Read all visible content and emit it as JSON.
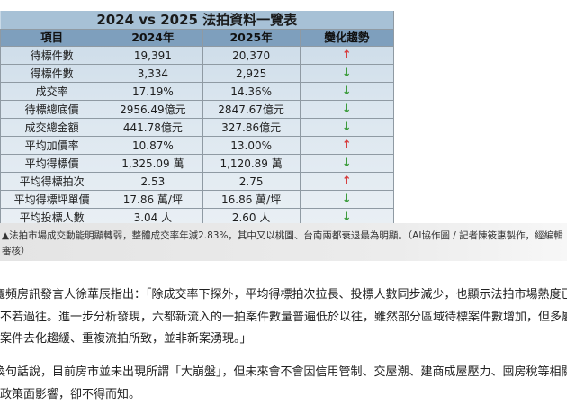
{
  "table": {
    "title": "2024 vs 2025 法拍資料一覽表",
    "headers": [
      "項目",
      "2024年",
      "2025年",
      "變化趨勢"
    ],
    "rows": [
      {
        "item": "待標件數",
        "y2024": "19,391",
        "y2025": "20,370",
        "trend": "↑",
        "trend_dir": "up"
      },
      {
        "item": "得標件數",
        "y2024": "3,334",
        "y2025": "2,925",
        "trend": "↓",
        "trend_dir": "down"
      },
      {
        "item": "成交率",
        "y2024": "17.19%",
        "y2025": "14.36%",
        "trend": "↓",
        "trend_dir": "down"
      },
      {
        "item": "待標總底價",
        "y2024": "2956.49億元",
        "y2025": "2847.67億元",
        "trend": "↓",
        "trend_dir": "down"
      },
      {
        "item": "成交總金額",
        "y2024": "441.78億元",
        "y2025": "327.86億元",
        "trend": "↓",
        "trend_dir": "down"
      },
      {
        "item": "平均加價率",
        "y2024": "10.87%",
        "y2025": "13.00%",
        "trend": "↑",
        "trend_dir": "up"
      },
      {
        "item": "平均得標價",
        "y2024": "1,325.09 萬",
        "y2025": "1,120.89 萬",
        "trend": "↓",
        "trend_dir": "down"
      },
      {
        "item": "平均得標拍次",
        "y2024": "2.53",
        "y2025": "2.75",
        "trend": "↑",
        "trend_dir": "up"
      },
      {
        "item": "平均得標坪單價",
        "y2024": "17.86 萬/坪",
        "y2025": "16.86 萬/坪",
        "trend": "↓",
        "trend_dir": "down"
      },
      {
        "item": "平均投標人數",
        "y2024": "3.04 人",
        "y2025": "2.60 人",
        "trend": "↓",
        "trend_dir": "down"
      }
    ],
    "colors": {
      "up": "#d63b3b",
      "down": "#3a9b3a",
      "title_bg": "#a7c1d6",
      "header_bg": "#7e9fbd"
    }
  },
  "caption": "▲法拍市場成交動能明顯轉弱，整體成交率年減2.83%，其中又以桃園、台南兩都衰退最為明顯。（AI協作圖 / 記者陳筱惠製作，經編輯審核）",
  "article": {
    "paragraphs": [
      "寬頻房訊發言人徐華辰指出：「除成交率下探外，平均得標拍次拉長、投標人數同步減少，也顯示法拍市場熱度已不若過往。進一步分析發現，六都新流入的一拍案件數量普遍低於以往，雖然部分區域待標案件數增加，但多屬案件去化趨緩、重複流拍所致，並非新案湧現。」",
      "換句話說，目前房市並未出現所謂「大崩盤」，但未來會不會因信用管制、交屋潮、建商成屋壓力、囤房稅等相關政策面影響，卻不得而知。"
    ]
  }
}
